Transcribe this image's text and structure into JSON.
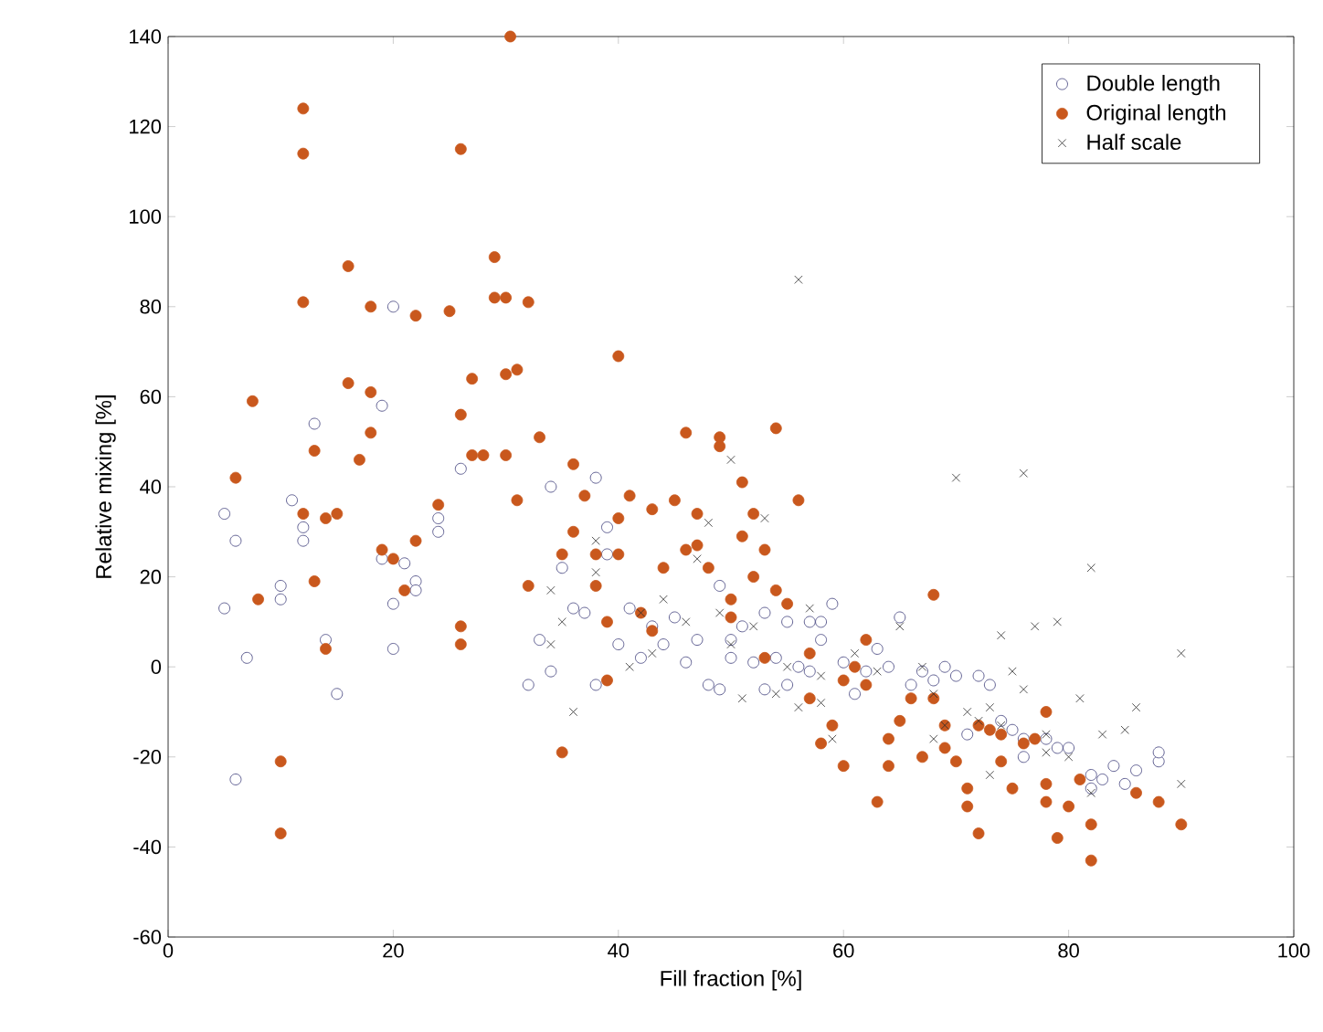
{
  "chart_data": {
    "type": "scatter",
    "xlabel": "Fill fraction [%]",
    "ylabel": "Relative mixing [%]",
    "xlim": [
      0,
      100
    ],
    "ylim": [
      -60,
      140
    ],
    "xticks": [
      0,
      20,
      40,
      60,
      80,
      100
    ],
    "yticks": [
      -60,
      -40,
      -20,
      0,
      20,
      40,
      60,
      80,
      100,
      120,
      140
    ],
    "grid": false,
    "legend": "top right",
    "series": [
      {
        "name": "Double length",
        "color": "#3b3b78",
        "marker": "circle",
        "x": [
          5,
          5,
          6,
          6,
          7,
          10,
          10,
          11,
          12,
          12,
          13,
          14,
          15,
          19,
          19,
          20,
          20,
          20,
          21,
          22,
          22,
          24,
          24,
          26,
          32,
          33,
          34,
          34,
          35,
          36,
          37,
          38,
          38,
          39,
          39,
          40,
          41,
          42,
          43,
          44,
          45,
          46,
          47,
          48,
          49,
          49,
          50,
          50,
          51,
          52,
          53,
          53,
          54,
          55,
          55,
          56,
          57,
          58,
          58,
          59,
          60,
          61,
          62,
          63,
          64,
          65,
          66,
          67,
          68,
          69,
          70,
          71,
          72,
          73,
          74,
          75,
          76,
          76,
          78,
          79,
          80,
          82,
          82,
          83,
          84,
          85,
          86,
          88,
          88,
          57
        ],
        "values": [
          34,
          13,
          28,
          -25,
          2,
          18,
          15,
          37,
          31,
          28,
          54,
          6,
          -6,
          58,
          24,
          80,
          14,
          4,
          23,
          19,
          17,
          30,
          33,
          44,
          -4,
          6,
          -1,
          40,
          22,
          13,
          12,
          42,
          -4,
          25,
          31,
          5,
          13,
          2,
          9,
          5,
          11,
          1,
          6,
          -4,
          -5,
          18,
          6,
          2,
          9,
          1,
          -5,
          12,
          2,
          -4,
          10,
          0,
          -1,
          6,
          10,
          14,
          1,
          -6,
          -1,
          4,
          0,
          11,
          -4,
          -1,
          -3,
          0,
          -2,
          -15,
          -2,
          -4,
          -12,
          -14,
          -20,
          -16,
          -16,
          -18,
          -18,
          -24,
          -27,
          -25,
          -22,
          -26,
          -23,
          -21,
          -19,
          10
        ]
      },
      {
        "name": "Original length",
        "color": "#c9581d",
        "marker": "circle",
        "x": [
          30.4,
          12,
          12,
          7.5,
          6,
          8,
          10,
          10,
          12,
          12,
          13,
          13,
          14,
          14,
          15,
          16,
          17,
          18,
          18,
          18,
          19,
          20,
          21,
          22,
          22,
          24,
          25,
          26,
          26,
          26,
          26,
          27,
          27,
          28,
          29,
          29,
          30,
          30,
          30,
          31,
          31,
          32,
          32,
          33,
          35,
          35,
          36,
          36,
          37,
          38,
          38,
          39,
          39,
          40,
          40,
          40,
          41,
          42,
          43,
          43,
          44,
          45,
          46,
          46,
          47,
          47,
          48,
          49,
          49,
          50,
          50,
          51,
          51,
          52,
          52,
          53,
          53,
          54,
          54,
          55,
          56,
          57,
          57,
          58,
          59,
          60,
          60,
          61,
          62,
          62,
          63,
          64,
          64,
          65,
          66,
          67,
          68,
          68,
          69,
          70,
          71,
          71,
          72,
          72,
          73,
          74,
          75,
          76,
          77,
          78,
          78,
          79,
          80,
          81,
          82,
          82,
          86,
          88,
          90,
          78,
          69,
          74,
          16
        ],
        "values": [
          140,
          124,
          114,
          59,
          42,
          15,
          -21,
          -37,
          81,
          34,
          48,
          19,
          33,
          4,
          34,
          63,
          46,
          80,
          61,
          52,
          26,
          24,
          17,
          78,
          28,
          36,
          79,
          56,
          115,
          9,
          5,
          47,
          64,
          47,
          82,
          91,
          82,
          65,
          47,
          66,
          37,
          81,
          18,
          51,
          -19,
          25,
          45,
          30,
          38,
          25,
          18,
          10,
          -3,
          69,
          33,
          25,
          38,
          12,
          8,
          35,
          22,
          37,
          52,
          26,
          34,
          27,
          22,
          49,
          51,
          15,
          11,
          41,
          29,
          34,
          20,
          26,
          2,
          53,
          17,
          14,
          37,
          3,
          -7,
          -17,
          -13,
          -3,
          -22,
          0,
          6,
          -4,
          -30,
          -16,
          -22,
          -12,
          -7,
          -20,
          16,
          -7,
          -13,
          -21,
          -27,
          -31,
          -37,
          -13,
          -14,
          -21,
          -27,
          -17,
          -16,
          -10,
          -30,
          -38,
          -31,
          -25,
          -43,
          -35,
          -28,
          -30,
          -35,
          -26,
          -18,
          -15,
          89
        ]
      },
      {
        "name": "Half scale",
        "color": "#2b2b2b",
        "marker": "cross",
        "x": [
          34,
          34,
          35,
          36,
          38,
          38,
          41,
          42,
          43,
          44,
          46,
          47,
          48,
          49,
          50,
          50,
          51,
          52,
          53,
          54,
          55,
          56,
          56,
          57,
          58,
          58,
          59,
          61,
          63,
          65,
          67,
          68,
          69,
          70,
          71,
          72,
          73,
          74,
          75,
          76,
          76,
          77,
          78,
          79,
          80,
          81,
          82,
          82,
          83,
          85,
          86,
          90,
          90,
          68,
          73,
          74,
          78
        ],
        "values": [
          17,
          5,
          10,
          -10,
          21,
          28,
          0,
          12,
          3,
          15,
          10,
          24,
          32,
          12,
          46,
          5,
          -7,
          9,
          33,
          -6,
          0,
          -9,
          86,
          13,
          -2,
          -8,
          -16,
          3,
          -1,
          9,
          0,
          -6,
          -13,
          42,
          -10,
          -12,
          -9,
          -13,
          -1,
          43,
          -5,
          9,
          -15,
          10,
          -20,
          -7,
          22,
          -28,
          -15,
          -14,
          -9,
          3,
          -26,
          -16,
          -24,
          7,
          -19
        ]
      }
    ]
  }
}
